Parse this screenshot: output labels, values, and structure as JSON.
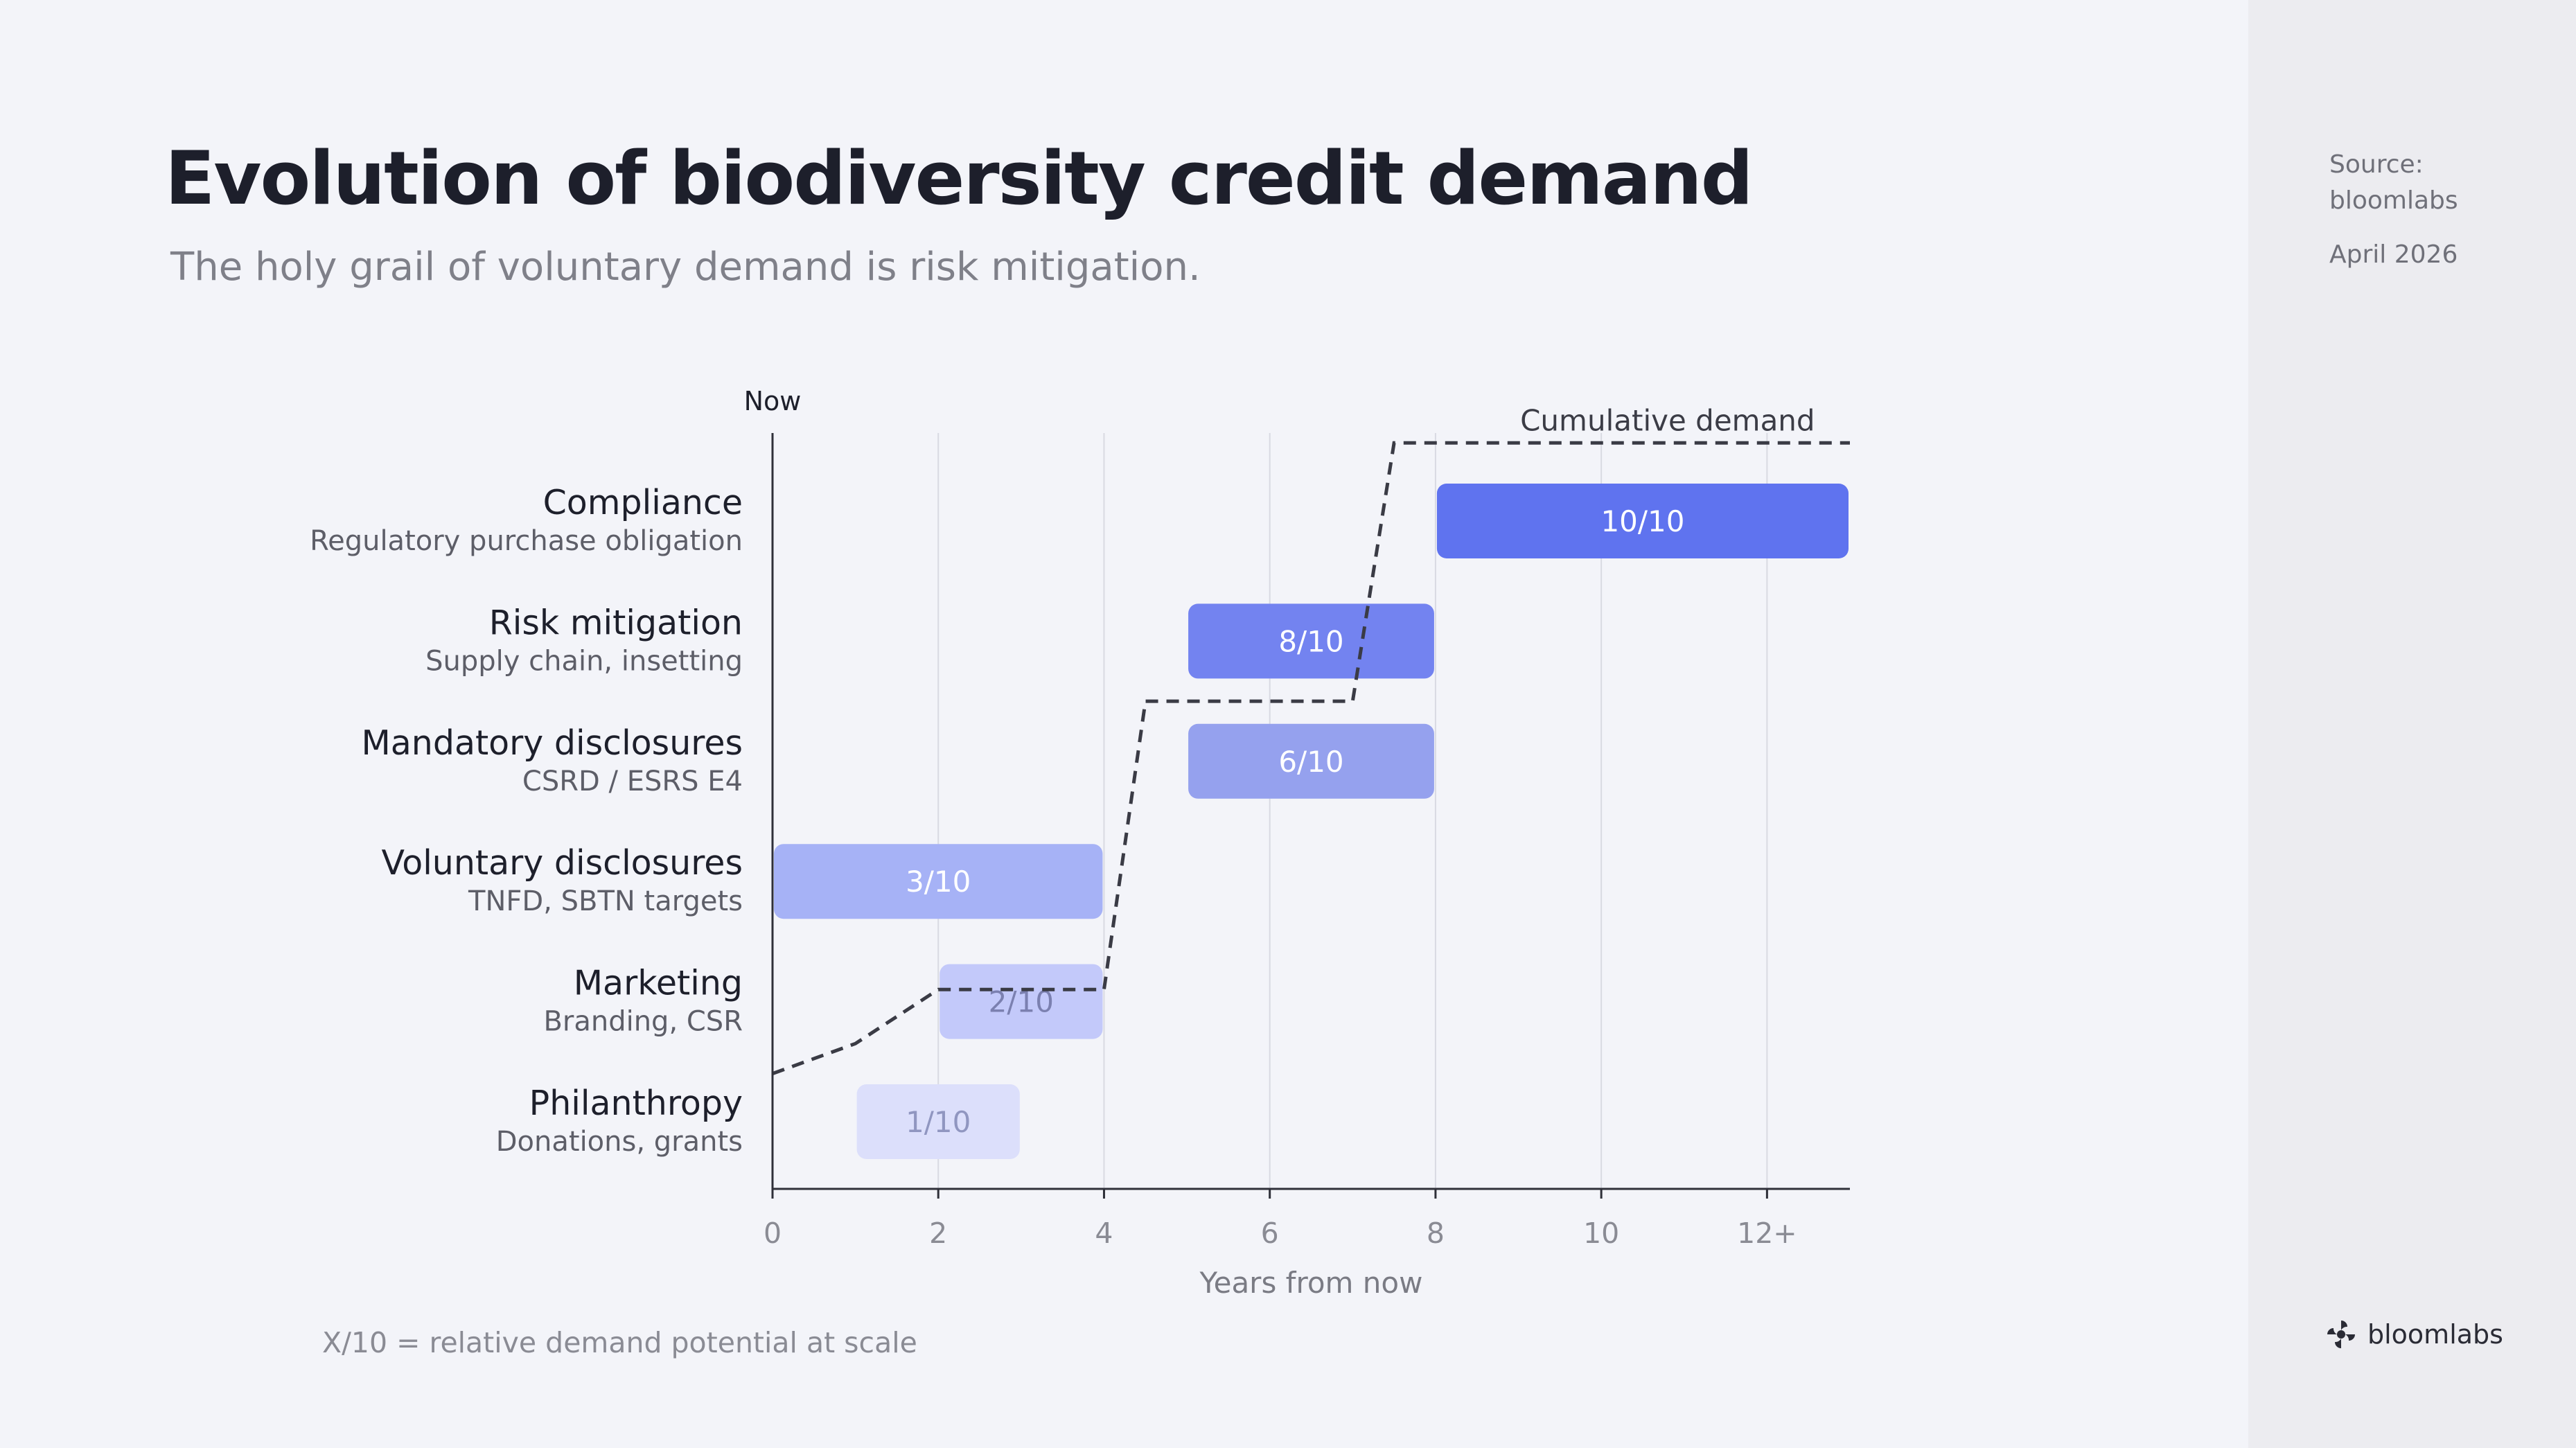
{
  "title": "Evolution of biodiversity credit demand",
  "subtitle": "The holy grail of voluntary demand is risk mitigation.",
  "sidebar": {
    "source_label": "Source:",
    "source_name": "bloomlabs",
    "date": "April 2026",
    "logo_text": "bloomlabs"
  },
  "footnote": "X/10 = relative demand potential at scale",
  "colors": {
    "bar_10": "#5f73ef",
    "bar_8": "#7383f0",
    "bar_6": "#95a1ee",
    "bar_3": "#a6b2f6",
    "bar_2": "#c3c9fa",
    "bar_1": "#dcdffb",
    "cumulative_line": "#3a3b45"
  },
  "chart_data": {
    "type": "gantt",
    "xlabel": "Years from now",
    "xlim": [
      0,
      13
    ],
    "xticks": [
      0,
      2,
      4,
      6,
      8,
      10,
      12
    ],
    "xtick_labels": [
      "0",
      "2",
      "4",
      "6",
      "8",
      "10",
      "12+"
    ],
    "now_label": "Now",
    "cumulative_label": "Cumulative demand",
    "categories": [
      {
        "name": "Compliance",
        "sub": "Regulatory purchase obligation",
        "start": 8,
        "end": 13,
        "label": "10/10",
        "score": 10,
        "text_color": "#ffffff"
      },
      {
        "name": "Risk mitigation",
        "sub": "Supply chain, insetting",
        "start": 5,
        "end": 8,
        "label": "8/10",
        "score": 8,
        "text_color": "#ffffff"
      },
      {
        "name": "Mandatory disclosures",
        "sub": "CSRD / ESRS E4",
        "start": 5,
        "end": 8,
        "label": "6/10",
        "score": 6,
        "text_color": "#ffffff"
      },
      {
        "name": "Voluntary disclosures",
        "sub": "TNFD, SBTN targets",
        "start": 0,
        "end": 4,
        "label": "3/10",
        "score": 3,
        "text_color": "#ffffff"
      },
      {
        "name": "Marketing",
        "sub": "Branding, CSR",
        "start": 2,
        "end": 4,
        "label": "2/10",
        "score": 2,
        "text_color": "#7b80b0"
      },
      {
        "name": "Philanthropy",
        "sub": "Donations, grants",
        "start": 1,
        "end": 3,
        "label": "1/10",
        "score": 1,
        "text_color": "#9096c0"
      }
    ],
    "cumulative_curve": [
      {
        "x": 0,
        "row": 4.6
      },
      {
        "x": 1,
        "row": 4.35
      },
      {
        "x": 2,
        "row": 3.9
      },
      {
        "x": 4,
        "row": 3.9
      },
      {
        "x": 4.5,
        "row": 1.5
      },
      {
        "x": 7,
        "row": 1.5
      },
      {
        "x": 7.5,
        "row": -0.65
      },
      {
        "x": 13,
        "row": -0.65
      }
    ]
  }
}
